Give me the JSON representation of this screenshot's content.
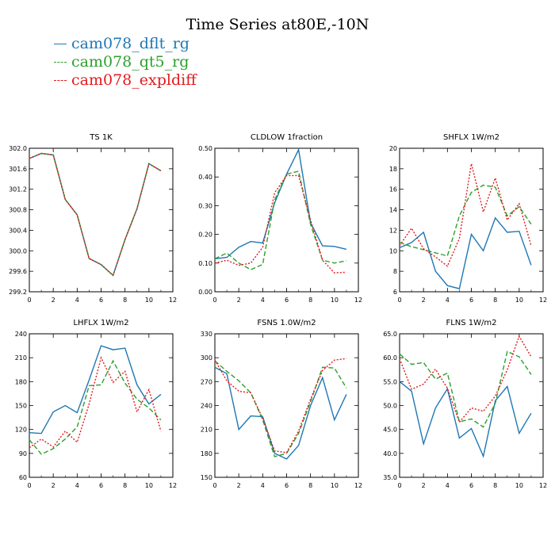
{
  "title": "Time Series at80E,-10N",
  "legend": [
    {
      "label": "cam078_dflt_rg",
      "color": "#1f77b4"
    },
    {
      "label": "cam078_qt5_rg",
      "color": "#2ca02c"
    },
    {
      "label": "cam078_expldiff",
      "color": "#e31a1c"
    }
  ],
  "chart_data": [
    {
      "type": "line",
      "title": "TS   1K",
      "x": [
        0,
        1,
        2,
        3,
        4,
        5,
        6,
        7,
        8,
        9,
        10,
        11
      ],
      "xlim": [
        0,
        12
      ],
      "xticks": [
        "0",
        "2",
        "4",
        "6",
        "8",
        "10",
        "12"
      ],
      "ylim": [
        299.2,
        302.0
      ],
      "yticks": [
        "299.2",
        "299.6",
        "300.0",
        "300.4",
        "300.8",
        "301.2",
        "301.6",
        "302.0"
      ],
      "series": [
        {
          "name": "cam078_dflt_rg",
          "values": [
            301.8,
            301.9,
            301.87,
            301.0,
            300.7,
            299.85,
            299.73,
            299.52,
            300.22,
            300.82,
            301.7,
            301.56
          ]
        },
        {
          "name": "cam078_qt5_rg",
          "values": [
            301.8,
            301.9,
            301.87,
            301.0,
            300.7,
            299.85,
            299.73,
            299.52,
            300.22,
            300.82,
            301.7,
            301.56
          ]
        },
        {
          "name": "cam078_expldiff",
          "values": [
            301.8,
            301.9,
            301.87,
            301.0,
            300.7,
            299.85,
            299.73,
            299.52,
            300.22,
            300.82,
            301.7,
            301.56
          ]
        }
      ]
    },
    {
      "type": "line",
      "title": "CLDLOW   1fraction",
      "x": [
        0,
        1,
        2,
        3,
        4,
        5,
        6,
        7,
        8,
        9,
        10,
        11
      ],
      "xlim": [
        0,
        12
      ],
      "xticks": [
        "0",
        "2",
        "4",
        "6",
        "8",
        "10",
        "12"
      ],
      "ylim": [
        0.0,
        0.5
      ],
      "yticks": [
        "0.00",
        "0.10",
        "0.20",
        "0.30",
        "0.40",
        "0.50"
      ],
      "series": [
        {
          "name": "cam078_dflt_rg",
          "values": [
            0.115,
            0.12,
            0.155,
            0.175,
            0.17,
            0.31,
            0.41,
            0.495,
            0.24,
            0.16,
            0.158,
            0.148
          ]
        },
        {
          "name": "cam078_qt5_rg",
          "values": [
            0.115,
            0.135,
            0.1,
            0.077,
            0.095,
            0.32,
            0.41,
            0.42,
            0.235,
            0.11,
            0.1,
            0.108
          ]
        },
        {
          "name": "cam078_expldiff",
          "values": [
            0.1,
            0.11,
            0.092,
            0.1,
            0.155,
            0.345,
            0.405,
            0.405,
            0.25,
            0.11,
            0.066,
            0.068
          ]
        }
      ]
    },
    {
      "type": "line",
      "title": "SHFLX   1W/m2",
      "x": [
        0,
        1,
        2,
        3,
        4,
        5,
        6,
        7,
        8,
        9,
        10,
        11
      ],
      "xlim": [
        0,
        12
      ],
      "xticks": [
        "0",
        "2",
        "4",
        "6",
        "8",
        "10",
        "12"
      ],
      "ylim": [
        6,
        20
      ],
      "yticks": [
        "6",
        "8",
        "10",
        "12",
        "14",
        "16",
        "18",
        "20"
      ],
      "series": [
        {
          "name": "cam078_dflt_rg",
          "values": [
            10.3,
            10.8,
            11.8,
            8.0,
            6.6,
            6.3,
            11.6,
            10.0,
            13.2,
            11.8,
            11.9,
            8.6
          ]
        },
        {
          "name": "cam078_qt5_rg",
          "values": [
            10.8,
            10.4,
            10.1,
            9.8,
            9.5,
            13.4,
            15.7,
            16.4,
            16.2,
            13.4,
            14.3,
            12.6
          ]
        },
        {
          "name": "cam078_expldiff",
          "values": [
            10.5,
            12.2,
            10.2,
            9.4,
            8.5,
            11.2,
            18.5,
            13.8,
            17.1,
            13.0,
            14.6,
            10.5
          ]
        }
      ]
    },
    {
      "type": "line",
      "title": "LHFLX   1W/m2",
      "x": [
        0,
        1,
        2,
        3,
        4,
        5,
        6,
        7,
        8,
        9,
        10,
        11
      ],
      "xlim": [
        0,
        12
      ],
      "xticks": [
        "0",
        "2",
        "4",
        "6",
        "8",
        "10",
        "12"
      ],
      "ylim": [
        60,
        240
      ],
      "yticks": [
        "60",
        "90",
        "120",
        "150",
        "180",
        "210",
        "240"
      ],
      "series": [
        {
          "name": "cam078_dflt_rg",
          "values": [
            116,
            115,
            142,
            150,
            141,
            182,
            225,
            220,
            222,
            176,
            152,
            164
          ]
        },
        {
          "name": "cam078_qt5_rg",
          "values": [
            107,
            89,
            96,
            108,
            123,
            175,
            176,
            206,
            178,
            158,
            147,
            132
          ]
        },
        {
          "name": "cam078_expldiff",
          "values": [
            97,
            108,
            98,
            118,
            104,
            152,
            210,
            179,
            193,
            142,
            170,
            118
          ]
        }
      ]
    },
    {
      "type": "line",
      "title": "FSNS   1.0W/m2",
      "x": [
        0,
        1,
        2,
        3,
        4,
        5,
        6,
        7,
        8,
        9,
        10,
        11
      ],
      "xlim": [
        0,
        12
      ],
      "xticks": [
        "0",
        "2",
        "4",
        "6",
        "8",
        "10",
        "12"
      ],
      "ylim": [
        150,
        330
      ],
      "yticks": [
        "150",
        "180",
        "210",
        "240",
        "270",
        "300",
        "330"
      ],
      "series": [
        {
          "name": "cam078_dflt_rg",
          "values": [
            288,
            280,
            210,
            227,
            226,
            180,
            173,
            190,
            240,
            275,
            222,
            254
          ]
        },
        {
          "name": "cam078_qt5_rg",
          "values": [
            296,
            283,
            271,
            256,
            222,
            176,
            180,
            205,
            245,
            288,
            287,
            262
          ]
        },
        {
          "name": "cam078_expldiff",
          "values": [
            297,
            271,
            258,
            256,
            224,
            183,
            181,
            208,
            248,
            284,
            297,
            299
          ]
        }
      ]
    },
    {
      "type": "line",
      "title": "FLNS   1W/m2",
      "x": [
        0,
        1,
        2,
        3,
        4,
        5,
        6,
        7,
        8,
        9,
        10,
        11
      ],
      "xlim": [
        0,
        12
      ],
      "xticks": [
        "0",
        "2",
        "4",
        "6",
        "8",
        "10",
        "12"
      ],
      "ylim": [
        35.0,
        65.0
      ],
      "yticks": [
        "35.0",
        "40.0",
        "45.0",
        "50.0",
        "55.0",
        "60.0",
        "65.0"
      ],
      "series": [
        {
          "name": "cam078_dflt_rg",
          "values": [
            55.0,
            53.0,
            42.0,
            49.5,
            53.5,
            43.2,
            45.2,
            39.4,
            51.0,
            54.0,
            44.2,
            48.4
          ]
        },
        {
          "name": "cam078_qt5_rg",
          "values": [
            60.8,
            58.6,
            59.0,
            55.5,
            56.8,
            46.6,
            47.2,
            45.5,
            50.5,
            61.3,
            60.2,
            56.5
          ]
        },
        {
          "name": "cam078_expldiff",
          "values": [
            59.8,
            53.4,
            54.5,
            57.6,
            53.6,
            46.5,
            49.5,
            48.8,
            52.0,
            57.5,
            64.5,
            60.2
          ]
        }
      ]
    }
  ]
}
